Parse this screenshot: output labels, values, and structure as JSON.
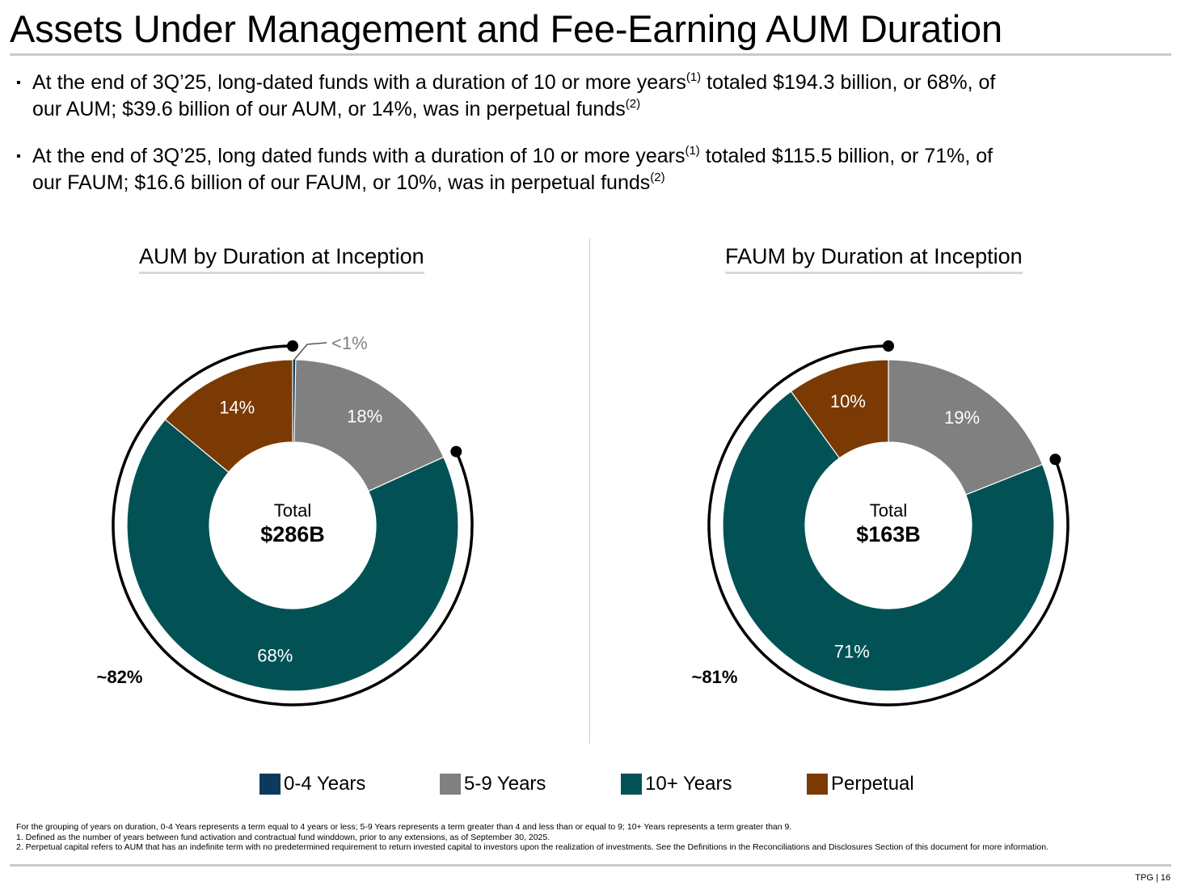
{
  "title": "Assets Under Management and Fee-Earning AUM Duration",
  "bullets": [
    {
      "marker": "▪",
      "line1_a": "At the end of 3Q’25, long-dated funds with a duration of 10 or more years",
      "line1_sup": "(1)",
      "line1_b": " totaled $194.3 billion, or 68%, of",
      "line2_a": "our AUM; $39.6 billion of our AUM, or 14%, was in perpetual funds",
      "line2_sup": "(2)"
    },
    {
      "marker": "▪",
      "line1_a": "At the end of 3Q’25, long dated funds with a duration of 10 or more years",
      "line1_sup": "(1)",
      "line1_b": " totaled $115.5 billion, or 71%, of",
      "line2_a": "our FAUM; $16.6 billion of our FAUM, or 10%, was in perpetual funds",
      "line2_sup": "(2)"
    }
  ],
  "colors": {
    "0-4 Years": "#0d3a5c",
    "5-9 Years": "#808080",
    "10+ Years": "#025255",
    "Perpetual": "#7b3a04"
  },
  "legend": [
    "0-4 Years",
    "5-9 Years",
    "10+ Years",
    "Perpetual"
  ],
  "chart_data": [
    {
      "type": "pie",
      "title": "AUM by Duration at Inception",
      "center_label": "Total",
      "center_value": "$286B",
      "slices": [
        {
          "category": "0-4 Years",
          "value": 0.3,
          "label": "<1%"
        },
        {
          "category": "5-9 Years",
          "value": 18,
          "label": "18%"
        },
        {
          "category": "10+ Years",
          "value": 68,
          "label": "68%"
        },
        {
          "category": "Perpetual",
          "value": 14,
          "label": "14%"
        }
      ],
      "bracket_label": "~82%",
      "bracket_covers": [
        "10+ Years",
        "Perpetual"
      ]
    },
    {
      "type": "pie",
      "title": "FAUM by Duration at Inception",
      "center_label": "Total",
      "center_value": "$163B",
      "slices": [
        {
          "category": "5-9 Years",
          "value": 19,
          "label": "19%"
        },
        {
          "category": "10+ Years",
          "value": 71,
          "label": "71%"
        },
        {
          "category": "Perpetual",
          "value": 10,
          "label": "10%"
        }
      ],
      "bracket_label": "~81%",
      "bracket_covers": [
        "10+ Years",
        "Perpetual"
      ]
    }
  ],
  "footnotes": [
    "For the grouping of years on duration, 0-4 Years represents a term equal to 4 years or less; 5-9 Years represents a term greater than 4 and less than or equal to 9; 10+ Years represents a term greater than 9.",
    "1. Defined as the number of years between fund activation and contractual fund winddown, prior to any extensions, as of September 30, 2025.",
    "2. Perpetual capital refers to AUM that has an indefinite term with no predetermined requirement to return invested capital to investors upon the realization of investments. See the Definitions in the Reconciliations and Disclosures Section of this document for more information."
  ],
  "page_tag": "TPG | 16"
}
